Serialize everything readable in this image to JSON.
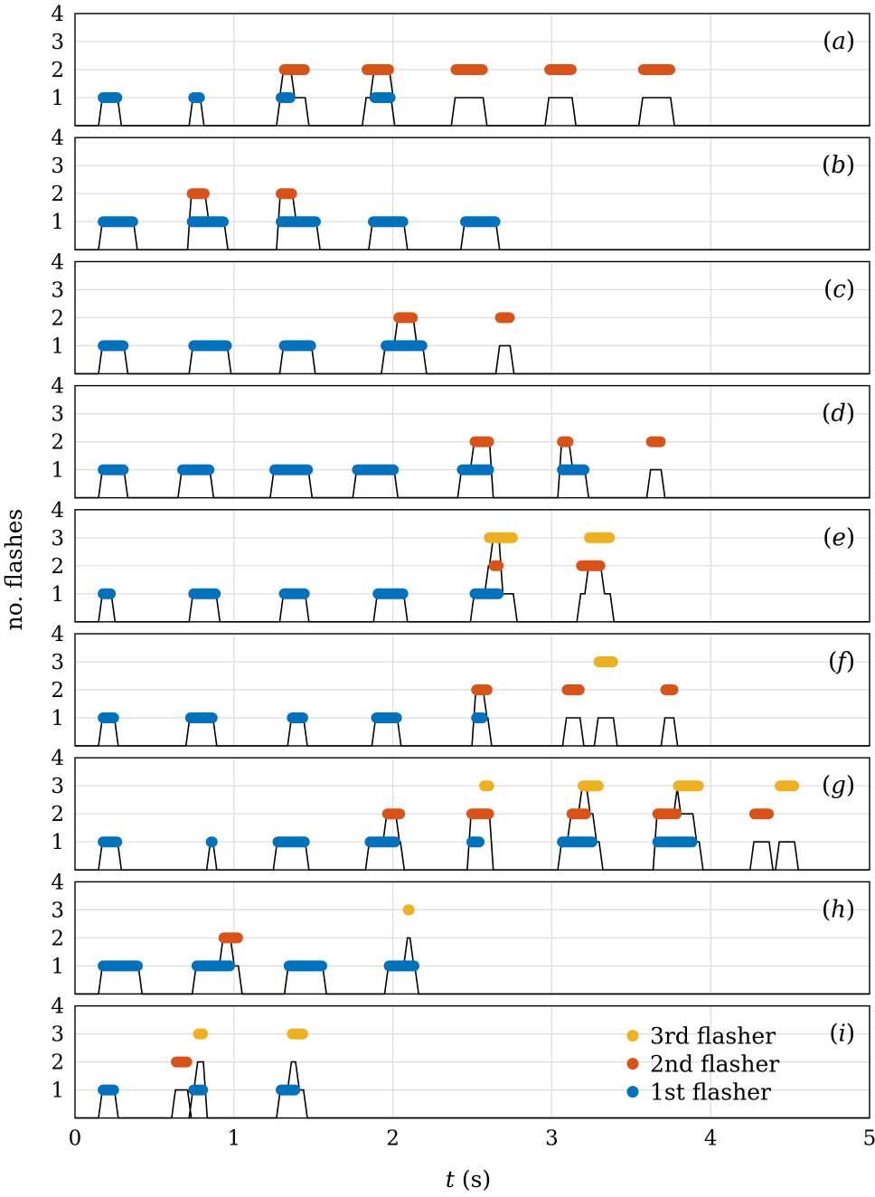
{
  "chart_data": {
    "type": "scatter",
    "xlabel_prefix": "t",
    "xlabel_suffix": " (s)",
    "ylabel": "no. flashes",
    "xlim": [
      0,
      5
    ],
    "ylim": [
      0,
      4
    ],
    "xticks": [
      "0",
      "1",
      "2",
      "3",
      "4",
      "5"
    ],
    "yticks": [
      "1",
      "2",
      "3",
      "4"
    ],
    "colors": {
      "1": "#0072bd",
      "2": "#d95319",
      "3": "#edb120"
    },
    "legend": [
      {
        "level": 3,
        "label": "3rd flasher"
      },
      {
        "level": 2,
        "label": "2nd flasher"
      },
      {
        "level": 1,
        "label": "1st flasher"
      }
    ],
    "panels": [
      {
        "tag": "a",
        "legend": false,
        "flashes": [
          {
            "level": 1,
            "start": 0.16,
            "end": 0.28
          },
          {
            "level": 1,
            "start": 0.73,
            "end": 0.8
          },
          {
            "level": 2,
            "start": 1.3,
            "end": 1.46
          },
          {
            "level": 1,
            "start": 1.28,
            "end": 1.37
          },
          {
            "level": 2,
            "start": 1.82,
            "end": 1.99
          },
          {
            "level": 1,
            "start": 1.87,
            "end": 2.0
          },
          {
            "level": 2,
            "start": 2.38,
            "end": 2.58
          },
          {
            "level": 2,
            "start": 2.97,
            "end": 3.14
          },
          {
            "level": 2,
            "start": 3.56,
            "end": 3.76
          }
        ]
      },
      {
        "tag": "b",
        "legend": false,
        "flashes": [
          {
            "level": 1,
            "start": 0.16,
            "end": 0.38
          },
          {
            "level": 1,
            "start": 0.72,
            "end": 0.95
          },
          {
            "level": 2,
            "start": 0.72,
            "end": 0.83
          },
          {
            "level": 1,
            "start": 1.28,
            "end": 1.53
          },
          {
            "level": 2,
            "start": 1.28,
            "end": 1.38
          },
          {
            "level": 1,
            "start": 1.86,
            "end": 2.08
          },
          {
            "level": 1,
            "start": 2.44,
            "end": 2.66
          }
        ]
      },
      {
        "tag": "c",
        "legend": false,
        "flashes": [
          {
            "level": 1,
            "start": 0.16,
            "end": 0.32
          },
          {
            "level": 1,
            "start": 0.73,
            "end": 0.97
          },
          {
            "level": 1,
            "start": 1.3,
            "end": 1.5
          },
          {
            "level": 1,
            "start": 1.94,
            "end": 2.2
          },
          {
            "level": 2,
            "start": 2.02,
            "end": 2.14
          },
          {
            "level": 2,
            "start": 2.66,
            "end": 2.75
          }
        ]
      },
      {
        "tag": "d",
        "legend": false,
        "flashes": [
          {
            "level": 1,
            "start": 0.16,
            "end": 0.32
          },
          {
            "level": 1,
            "start": 0.66,
            "end": 0.86
          },
          {
            "level": 1,
            "start": 1.24,
            "end": 1.48
          },
          {
            "level": 1,
            "start": 1.76,
            "end": 2.02
          },
          {
            "level": 1,
            "start": 2.42,
            "end": 2.62
          },
          {
            "level": 2,
            "start": 2.5,
            "end": 2.62
          },
          {
            "level": 1,
            "start": 3.05,
            "end": 3.22
          },
          {
            "level": 2,
            "start": 3.05,
            "end": 3.12
          },
          {
            "level": 2,
            "start": 3.61,
            "end": 3.7
          }
        ]
      },
      {
        "tag": "e",
        "legend": false,
        "flashes": [
          {
            "level": 1,
            "start": 0.16,
            "end": 0.24
          },
          {
            "level": 1,
            "start": 0.73,
            "end": 0.9
          },
          {
            "level": 1,
            "start": 1.3,
            "end": 1.46
          },
          {
            "level": 1,
            "start": 1.89,
            "end": 2.08
          },
          {
            "level": 1,
            "start": 2.5,
            "end": 2.68
          },
          {
            "level": 2,
            "start": 2.62,
            "end": 2.68
          },
          {
            "level": 3,
            "start": 2.59,
            "end": 2.77
          },
          {
            "level": 2,
            "start": 3.17,
            "end": 3.32
          },
          {
            "level": 3,
            "start": 3.22,
            "end": 3.38
          }
        ]
      },
      {
        "tag": "f",
        "legend": false,
        "flashes": [
          {
            "level": 1,
            "start": 0.16,
            "end": 0.26
          },
          {
            "level": 1,
            "start": 0.71,
            "end": 0.88
          },
          {
            "level": 1,
            "start": 1.35,
            "end": 1.45
          },
          {
            "level": 1,
            "start": 1.88,
            "end": 2.04
          },
          {
            "level": 1,
            "start": 2.51,
            "end": 2.58
          },
          {
            "level": 2,
            "start": 2.51,
            "end": 2.61
          },
          {
            "level": 2,
            "start": 3.08,
            "end": 3.19
          },
          {
            "level": 3,
            "start": 3.28,
            "end": 3.4
          },
          {
            "level": 2,
            "start": 3.7,
            "end": 3.78
          }
        ]
      },
      {
        "tag": "g",
        "legend": false,
        "flashes": [
          {
            "level": 1,
            "start": 0.16,
            "end": 0.28
          },
          {
            "level": 1,
            "start": 0.84,
            "end": 0.88
          },
          {
            "level": 1,
            "start": 1.26,
            "end": 1.46
          },
          {
            "level": 1,
            "start": 1.84,
            "end": 2.03
          },
          {
            "level": 2,
            "start": 1.95,
            "end": 2.06
          },
          {
            "level": 1,
            "start": 2.48,
            "end": 2.56
          },
          {
            "level": 2,
            "start": 2.48,
            "end": 2.62
          },
          {
            "level": 3,
            "start": 2.56,
            "end": 2.62
          },
          {
            "level": 1,
            "start": 3.05,
            "end": 3.27
          },
          {
            "level": 2,
            "start": 3.11,
            "end": 3.23
          },
          {
            "level": 3,
            "start": 3.18,
            "end": 3.31
          },
          {
            "level": 1,
            "start": 3.65,
            "end": 3.9
          },
          {
            "level": 2,
            "start": 3.65,
            "end": 3.8
          },
          {
            "level": 3,
            "start": 3.78,
            "end": 3.94
          },
          {
            "level": 2,
            "start": 4.26,
            "end": 4.38
          },
          {
            "level": 3,
            "start": 4.42,
            "end": 4.54
          }
        ]
      },
      {
        "tag": "h",
        "legend": false,
        "flashes": [
          {
            "level": 1,
            "start": 0.16,
            "end": 0.41
          },
          {
            "level": 1,
            "start": 0.75,
            "end": 0.99
          },
          {
            "level": 2,
            "start": 0.92,
            "end": 1.04
          },
          {
            "level": 1,
            "start": 1.33,
            "end": 1.57
          },
          {
            "level": 1,
            "start": 1.96,
            "end": 2.15
          },
          {
            "level": 3,
            "start": 2.08,
            "end": 2.12
          }
        ]
      },
      {
        "tag": "i",
        "legend": true,
        "flashes": [
          {
            "level": 1,
            "start": 0.16,
            "end": 0.26
          },
          {
            "level": 2,
            "start": 0.62,
            "end": 0.72
          },
          {
            "level": 1,
            "start": 0.73,
            "end": 0.82
          },
          {
            "level": 3,
            "start": 0.76,
            "end": 0.82
          },
          {
            "level": 1,
            "start": 1.28,
            "end": 1.4
          },
          {
            "level": 3,
            "start": 1.35,
            "end": 1.45
          }
        ]
      }
    ]
  }
}
